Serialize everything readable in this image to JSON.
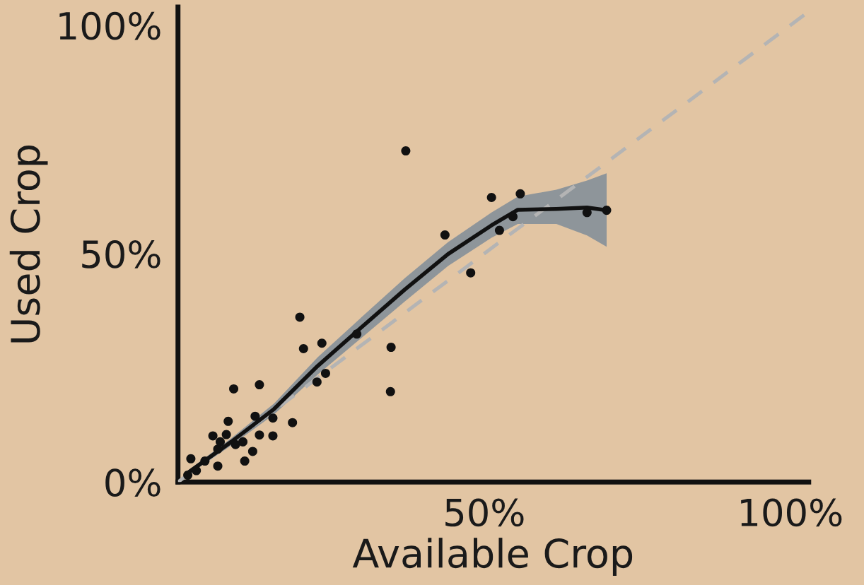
{
  "chart_data": {
    "type": "scatter",
    "xlabel": "Available Crop",
    "ylabel": "Used Crop",
    "xlim": [
      0,
      103
    ],
    "ylim": [
      0,
      104
    ],
    "xticks": [
      {
        "value": 50,
        "label": "50%"
      },
      {
        "value": 100,
        "label": "100%"
      }
    ],
    "yticks": [
      {
        "value": 0,
        "label": "0%"
      },
      {
        "value": 50,
        "label": "50%"
      },
      {
        "value": 100,
        "label": "100%"
      }
    ],
    "grid": false,
    "legend": false,
    "marker": "circle",
    "series": [
      {
        "type": "line",
        "color": "#b4b4b4",
        "line_style": "dashed",
        "marker": "none",
        "x": [
          0,
          103
        ],
        "values": [
          0,
          103
        ]
      },
      {
        "type": "line",
        "color": "#111111",
        "line_style": "solid",
        "marker": "none",
        "x": [
          1.6,
          8.7,
          15.7,
          22.8,
          29.9,
          37.0,
          44.1,
          51.2,
          55.5,
          61.8,
          66.8,
          70.0
        ],
        "values": [
          2.0,
          8.8,
          16.0,
          25.4,
          33.8,
          42.1,
          49.9,
          56.2,
          59.6,
          59.8,
          60.1,
          59.5
        ],
        "lower": [
          1.5,
          8,
          14.8,
          23.5,
          31.5,
          39.5,
          47.3,
          53.5,
          56.5,
          56.5,
          54,
          51.5
        ],
        "upper": [
          2.5,
          9.6,
          17.2,
          27.3,
          36,
          44.6,
          52.5,
          59,
          62.5,
          64,
          66,
          67.6
        ]
      },
      {
        "color": "#111111",
        "x": [
          37.2,
          51.2,
          55.9,
          54.7,
          52.5,
          43.6,
          47.8,
          66.8,
          70.0,
          19.9,
          20.5,
          23.5,
          29.2,
          34.8,
          34.7,
          24.1,
          22.7,
          13.3,
          9.1,
          18.7,
          15.5,
          15.5,
          12.6,
          13.3,
          8.2,
          7.9,
          5.7,
          10.6,
          12.2,
          10.9,
          6.5,
          6.5,
          4.4,
          2.1,
          3.0,
          1.6,
          9.4,
          6.9
        ],
        "values": [
          72.5,
          62.3,
          63.1,
          58.1,
          55.1,
          54.1,
          45.8,
          59.0,
          59.5,
          36.1,
          29.2,
          30.4,
          32.4,
          29.5,
          19.8,
          23.8,
          21.9,
          21.3,
          20.4,
          13.0,
          14.0,
          10.1,
          14.4,
          10.3,
          13.3,
          10.4,
          10.1,
          8.8,
          6.7,
          4.6,
          7.2,
          3.5,
          4.6,
          5.1,
          2.5,
          1.5,
          8.2,
          8.8
        ]
      }
    ]
  }
}
